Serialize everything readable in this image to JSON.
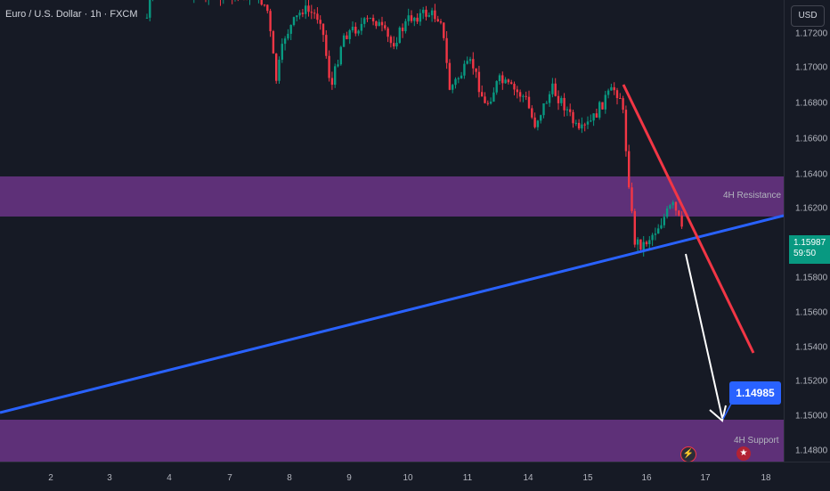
{
  "symbol": {
    "title": "Euro / U.S. Dollar · 1h · FXCM"
  },
  "price_axis": {
    "currency": "USD",
    "ticks": [
      "1.17200",
      "1.17000",
      "1.16800",
      "1.16600",
      "1.16400",
      "1.16200",
      "1.15800",
      "1.15600",
      "1.15400",
      "1.15200",
      "1.15000",
      "1.14800"
    ]
  },
  "last_price": {
    "value": "1.15987",
    "countdown": "59:50"
  },
  "time_axis": {
    "ticks": [
      "2",
      "3",
      "4",
      "7",
      "8",
      "9",
      "10",
      "11",
      "14",
      "15",
      "16",
      "17",
      "18"
    ]
  },
  "zones": {
    "resistance_label": "4H Resistance",
    "support_label": "4H Support",
    "resistance_color": "#7a3d93",
    "support_color": "#7a3d93"
  },
  "target": {
    "value": "1.14985",
    "color": "#2962ff"
  },
  "lines": {
    "trendline_color": "#2962ff",
    "downtrend_color": "#f23645",
    "projection_color": "#ffffff"
  },
  "candles": {
    "up_color": "#089981",
    "down_color": "#f23645"
  },
  "icons": {
    "event_icon": "lightning-icon",
    "flag_icon": "us-flag-icon"
  }
}
